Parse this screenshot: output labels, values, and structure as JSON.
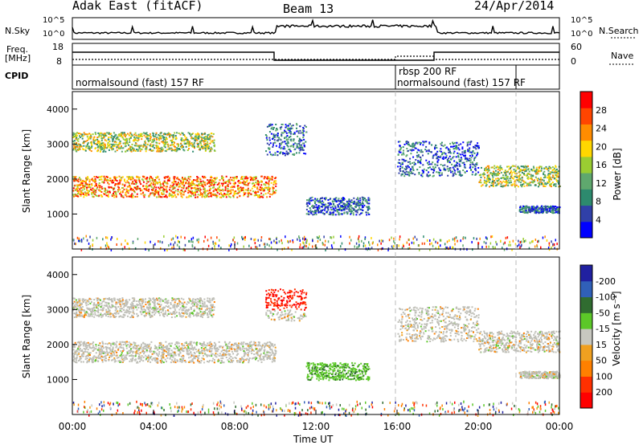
{
  "header": {
    "station": "Adak East (fitACF)",
    "beam": "Beam 13",
    "date": "24/Apr/2014"
  },
  "nsky": {
    "label": "N.Sky",
    "tick_top": "10^5",
    "tick_bottom": "10^0"
  },
  "nsearch": {
    "label": "N.Search",
    "tick_top": "10^5",
    "tick_bottom": "10^0"
  },
  "freq": {
    "label_line1": "Freq.",
    "label_line2": "[MHz]",
    "tick_top": "18",
    "tick_bottom": "8"
  },
  "nave": {
    "label": "Nave",
    "tick_top": "60",
    "tick_bottom": "0"
  },
  "cpid": {
    "label": "CPID",
    "modes": [
      "normalsound (fast) 157 RF",
      "rbsp 200 RF",
      "normalsound (fast) 157 RF"
    ]
  },
  "colors": {
    "power": [
      "#0000ff",
      "#3040a8",
      "#2d8a6e",
      "#5fa86e",
      "#9acd32",
      "#ffd700",
      "#ff8c00",
      "#ff4500",
      "#ff0000"
    ],
    "velocity": [
      "#2020a0",
      "#3060b8",
      "#306c30",
      "#5cc828",
      "#c8c8c0",
      "#f0a020",
      "#ff8000",
      "#ff3000",
      "#ff0000"
    ],
    "ground_scatter": "#bebeb6"
  },
  "chart_data": [
    {
      "type": "heatmap",
      "name": "power",
      "ylabel": "Slant Range [km]",
      "ylim": [
        0,
        4500
      ],
      "yticks": [
        "1000",
        "2000",
        "3000",
        "4000"
      ],
      "xticks": [
        "00:00",
        "04:00",
        "08:00",
        "12:00",
        "16:00",
        "20:00",
        "00:00"
      ],
      "xlim_hours": [
        0,
        24
      ],
      "colorbar": {
        "label": "Power [dB]",
        "ticks": [
          "4",
          "8",
          "12",
          "16",
          "20",
          "24",
          "28"
        ],
        "range": [
          0,
          30
        ]
      }
    },
    {
      "type": "heatmap",
      "name": "velocity",
      "ylabel": "Slant Range [km]",
      "ylim": [
        0,
        4500
      ],
      "yticks": [
        "1000",
        "2000",
        "3000",
        "4000"
      ],
      "xticks": [
        "00:00",
        "04:00",
        "08:00",
        "12:00",
        "16:00",
        "20:00",
        "00:00"
      ],
      "xlim_hours": [
        0,
        24
      ],
      "xlabel": "Time UT",
      "colorbar": {
        "label": "Velocity [m s⁻¹]",
        "ticks": [
          "200",
          "100",
          "50",
          "15",
          "-15",
          "-50",
          "-100",
          "-200"
        ]
      }
    }
  ],
  "scatter_regions": {
    "power_bands": [
      {
        "t": [
          0.0,
          10.0
        ],
        "range": [
          1500,
          2100
        ],
        "level": "high"
      },
      {
        "t": [
          0.0,
          7.0
        ],
        "range": [
          2800,
          3350
        ],
        "level": "mid"
      },
      {
        "t": [
          9.5,
          11.5
        ],
        "range": [
          2700,
          3600
        ],
        "level": "low"
      },
      {
        "t": [
          11.5,
          14.6
        ],
        "range": [
          1000,
          1500
        ],
        "level": "low"
      },
      {
        "t": [
          16.0,
          20.0
        ],
        "range": [
          2100,
          3100
        ],
        "level": "low"
      },
      {
        "t": [
          20.0,
          24.0
        ],
        "range": [
          1800,
          2400
        ],
        "level": "mid"
      },
      {
        "t": [
          22.0,
          24.0
        ],
        "range": [
          1050,
          1250
        ],
        "level": "low"
      }
    ]
  }
}
